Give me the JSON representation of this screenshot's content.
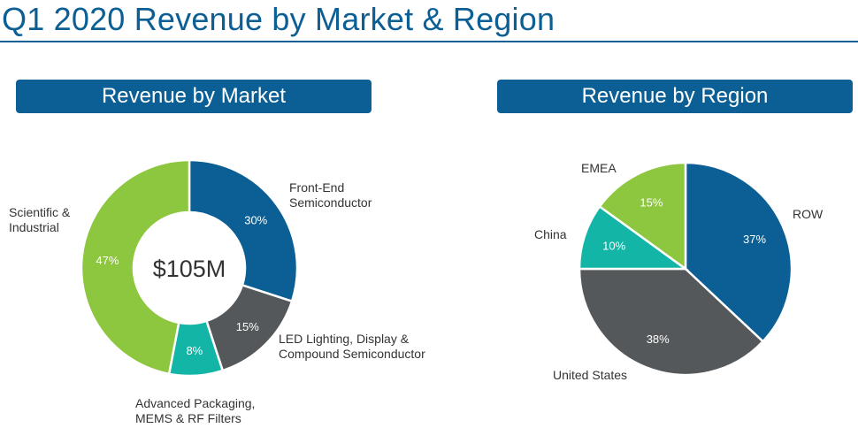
{
  "title": "Q1 2020 Revenue by Market & Region",
  "colors": {
    "brand_blue": "#0c5f94",
    "lime": "#8dc63f",
    "teal": "#13b5a6",
    "charcoal": "#54585a"
  },
  "headers": {
    "market": "Revenue by Market",
    "region": "Revenue by Region"
  },
  "chart_data": [
    {
      "type": "pie",
      "variant": "donut",
      "title": "Revenue by Market",
      "center_label": "$105M",
      "slices": [
        {
          "label": "Front-End Semiconductor",
          "label_lines": [
            "Front-End",
            "Semiconductor"
          ],
          "value": 30,
          "pct_label": "30%",
          "color": "#0c5f94"
        },
        {
          "label": "LED Lighting, Display & Compound Semiconductor",
          "label_lines": [
            "LED Lighting, Display &",
            "Compound Semiconductor"
          ],
          "value": 15,
          "pct_label": "15%",
          "color": "#54585a"
        },
        {
          "label": "Advanced Packaging, MEMS & RF Filters",
          "label_lines": [
            "Advanced Packaging,",
            "MEMS & RF Filters"
          ],
          "value": 8,
          "pct_label": "8%",
          "color": "#13b5a6"
        },
        {
          "label": "Scientific & Industrial",
          "label_lines": [
            "Scientific &",
            "Industrial"
          ],
          "value": 47,
          "pct_label": "47%",
          "color": "#8dc63f"
        }
      ]
    },
    {
      "type": "pie",
      "title": "Revenue by Region",
      "slices": [
        {
          "label": "ROW",
          "label_lines": [
            "ROW"
          ],
          "value": 37,
          "pct_label": "37%",
          "color": "#0c5f94"
        },
        {
          "label": "United States",
          "label_lines": [
            "United States"
          ],
          "value": 38,
          "pct_label": "38%",
          "color": "#54585a"
        },
        {
          "label": "China",
          "label_lines": [
            "China"
          ],
          "value": 10,
          "pct_label": "10%",
          "color": "#13b5a6"
        },
        {
          "label": "EMEA",
          "label_lines": [
            "EMEA"
          ],
          "value": 15,
          "pct_label": "15%",
          "color": "#8dc63f"
        }
      ]
    }
  ]
}
